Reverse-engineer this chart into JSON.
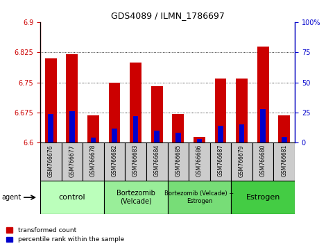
{
  "title": "GDS4089 / ILMN_1786697",
  "samples": [
    "GSM766676",
    "GSM766677",
    "GSM766678",
    "GSM766682",
    "GSM766683",
    "GSM766684",
    "GSM766685",
    "GSM766686",
    "GSM766687",
    "GSM766679",
    "GSM766680",
    "GSM766681"
  ],
  "red_values": [
    6.81,
    6.82,
    6.668,
    6.75,
    6.8,
    6.74,
    6.672,
    6.615,
    6.76,
    6.76,
    6.84,
    6.668
  ],
  "blue_values": [
    0.24,
    0.26,
    0.04,
    0.12,
    0.22,
    0.1,
    0.08,
    0.03,
    0.14,
    0.15,
    0.28,
    0.05
  ],
  "ymin": 6.6,
  "ymax": 6.9,
  "yticks_left": [
    6.6,
    6.675,
    6.75,
    6.825,
    6.9
  ],
  "yticks_right_vals": [
    0,
    25,
    50,
    75,
    100
  ],
  "yticks_right_labels": [
    "0",
    "25",
    "50",
    "75",
    "100%"
  ],
  "groups": [
    {
      "label": "control",
      "start": 0,
      "end": 3,
      "color": "#bbffbb",
      "fontsize": 8
    },
    {
      "label": "Bortezomib\n(Velcade)",
      "start": 3,
      "end": 6,
      "color": "#99ee99",
      "fontsize": 7
    },
    {
      "label": "Bortezomib (Velcade) +\nEstrogen",
      "start": 6,
      "end": 9,
      "color": "#77dd77",
      "fontsize": 6
    },
    {
      "label": "Estrogen",
      "start": 9,
      "end": 12,
      "color": "#44cc44",
      "fontsize": 8
    }
  ],
  "red_color": "#cc0000",
  "blue_color": "#0000cc",
  "bar_width": 0.55,
  "legend_red": "transformed count",
  "legend_blue": "percentile rank within the sample",
  "bg_color": "#ffffff",
  "tick_bg": "#cccccc"
}
